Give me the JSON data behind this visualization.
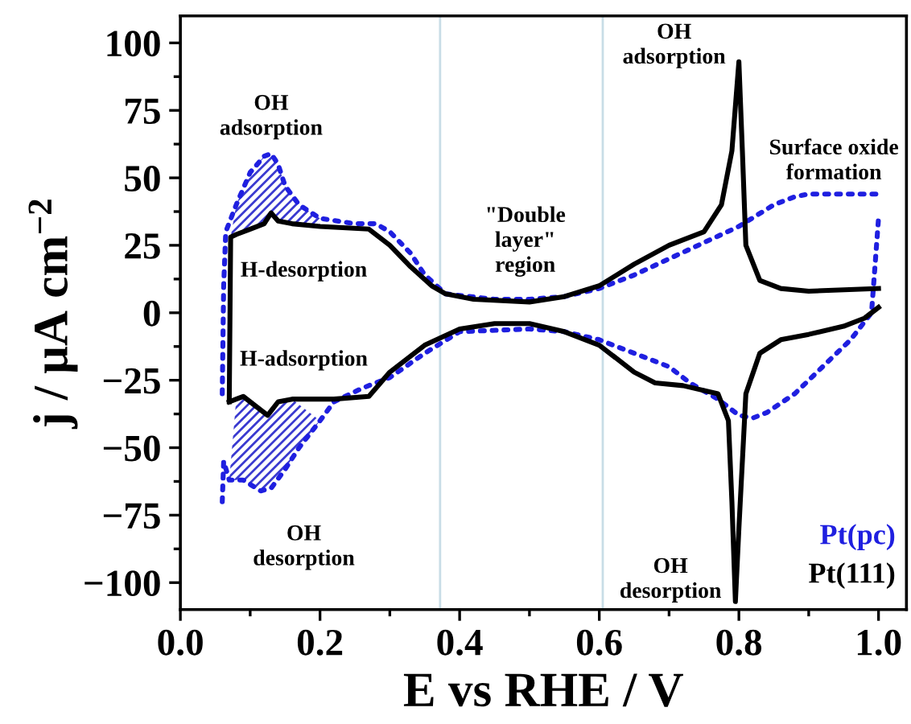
{
  "chart_data": {
    "type": "line",
    "xlabel": "E vs RHE / V",
    "ylabel": "j / μA cm$^{−2}$",
    "xlim": [
      0,
      1.04
    ],
    "ylim": [
      -110,
      110
    ],
    "xticks": [
      {
        "value": 0,
        "label": "0.0"
      },
      0.2,
      0.4,
      0.6,
      0.8,
      {
        "value": 1,
        "label": "1.0"
      }
    ],
    "yticks": [
      -100,
      -75,
      -50,
      -25,
      0,
      25,
      50,
      75,
      100
    ],
    "grid": false,
    "marker": "none",
    "ref_lines": [
      {
        "axis": "x",
        "value": 0.372,
        "color": "#c8dde6"
      },
      {
        "axis": "x",
        "value": 0.605,
        "color": "#c8dde6"
      }
    ],
    "series": [
      {
        "name": "Pt(pc)",
        "color": "#1f1fe0",
        "line_style": "dotted",
        "x": [
          0.06,
          0.062,
          0.065,
          0.08,
          0.1,
          0.12,
          0.13,
          0.14,
          0.15,
          0.17,
          0.2,
          0.25,
          0.28,
          0.3,
          0.33,
          0.35,
          0.38,
          0.45,
          0.5,
          0.55,
          0.6,
          0.65,
          0.7,
          0.75,
          0.8,
          0.85,
          0.88,
          0.9,
          1.0
        ],
        "values": [
          -30,
          10,
          30,
          40,
          52,
          58,
          59,
          55,
          47,
          40,
          35,
          33,
          33,
          30,
          22,
          14,
          7,
          5,
          5,
          6,
          9,
          14,
          20,
          26,
          32,
          40,
          43,
          44,
          44
        ]
      },
      {
        "color": "#1f1fe0",
        "line_style": "dotted",
        "x": [
          0.06,
          0.062,
          0.07,
          0.09,
          0.115,
          0.13,
          0.15,
          0.17,
          0.2,
          0.22,
          0.26,
          0.3,
          0.35,
          0.4,
          0.5,
          0.55,
          0.6,
          0.65,
          0.7,
          0.73,
          0.77,
          0.8,
          0.82,
          0.84,
          0.88,
          0.92,
          0.96,
          0.99,
          1.0
        ],
        "values": [
          -70,
          -55,
          -62,
          -62,
          -66,
          -65,
          -58,
          -50,
          -40,
          -33,
          -28,
          -24,
          -15,
          -7,
          -6,
          -7,
          -10,
          -15,
          -20,
          -26,
          -32,
          -38,
          -39,
          -37,
          -30,
          -20,
          -10,
          0,
          35
        ]
      },
      {
        "name": "Pt(111)",
        "color": "#000000",
        "line_style": "solid",
        "x": [
          0.07,
          0.072,
          0.08,
          0.1,
          0.12,
          0.13,
          0.14,
          0.16,
          0.2,
          0.27,
          0.3,
          0.33,
          0.36,
          0.38,
          0.42,
          0.5,
          0.55,
          0.6,
          0.65,
          0.7,
          0.75,
          0.775,
          0.79,
          0.8,
          0.805,
          0.81,
          0.83,
          0.86,
          0.9,
          1.0
        ],
        "values": [
          -33,
          28,
          29,
          31,
          33,
          37,
          34,
          33,
          32,
          31,
          25,
          17,
          10,
          7,
          5,
          4,
          6,
          10,
          18,
          25,
          30,
          40,
          60,
          93,
          60,
          25,
          12,
          9,
          8,
          9
        ]
      },
      {
        "color": "#000000",
        "line_style": "solid",
        "x": [
          0.07,
          0.08,
          0.09,
          0.11,
          0.125,
          0.14,
          0.16,
          0.22,
          0.27,
          0.3,
          0.35,
          0.4,
          0.45,
          0.5,
          0.55,
          0.6,
          0.65,
          0.68,
          0.72,
          0.77,
          0.785,
          0.79,
          0.795,
          0.8,
          0.81,
          0.83,
          0.86,
          0.9,
          0.95,
          0.98,
          1.0
        ],
        "values": [
          -33,
          -32,
          -31,
          -35,
          -38,
          -33,
          -32,
          -32,
          -31,
          -22,
          -12,
          -6,
          -4,
          -4,
          -7,
          -12,
          -22,
          -26,
          -27,
          -30,
          -40,
          -70,
          -107,
          -80,
          -30,
          -15,
          -10,
          -8,
          -5,
          -2,
          2
        ]
      }
    ],
    "annotations": [
      "OH\nadsorption",
      "H-desorption",
      "H-adsorption",
      "OH\ndesorption",
      "\"Double\nlayer\"\nregion",
      "OH\nadsorption",
      "Surface oxide\nformation",
      "OH\ndesorption"
    ]
  }
}
